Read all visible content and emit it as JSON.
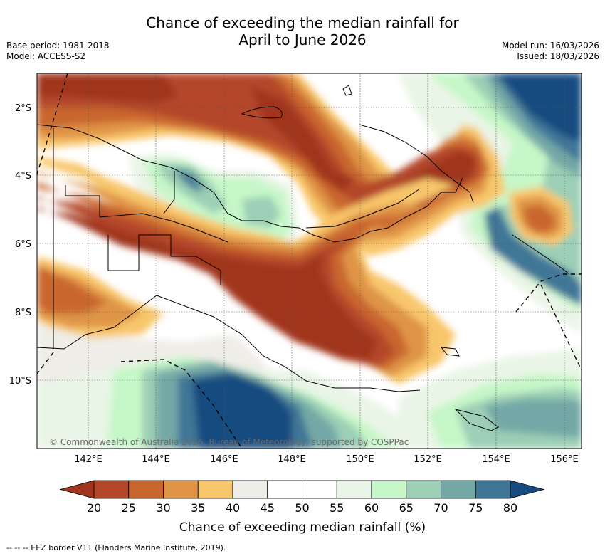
{
  "title": {
    "line1": "Chance of exceeding the median rainfall for",
    "line2": "April to June 2026"
  },
  "meta": {
    "base_period": "Base period: 1981-2018",
    "model": "Model: ACCESS-S2",
    "model_run": "Model run: 16/03/2026",
    "issued": "Issued: 18/03/2026"
  },
  "map": {
    "lat_labels": [
      "2°S",
      "4°S",
      "6°S",
      "8°S",
      "10°S"
    ],
    "lon_labels": [
      "142°E",
      "144°E",
      "146°E",
      "148°E",
      "150°E",
      "152°E",
      "154°E",
      "156°E"
    ],
    "copyright": "© Commonwealth of Australia 2026, Bureau of Meteorology, supported by COSPPac"
  },
  "colorbar": {
    "ticks": [
      "20",
      "25",
      "30",
      "35",
      "40",
      "45",
      "50",
      "55",
      "60",
      "65",
      "70",
      "75",
      "80"
    ],
    "colors": [
      "#a0361e",
      "#b4472a",
      "#c9662f",
      "#df9446",
      "#f8c66a",
      "#efede7",
      "#ffffff",
      "#ffffff",
      "#e9f5e6",
      "#c6f7c8",
      "#9ccfb5",
      "#73a8a6",
      "#3f7696",
      "#164b80"
    ],
    "label": "Chance of exceeding median rainfall (%)"
  },
  "footnote": "--  --  -- EEZ border V11 (Flanders Marine Institute, 2019)."
}
